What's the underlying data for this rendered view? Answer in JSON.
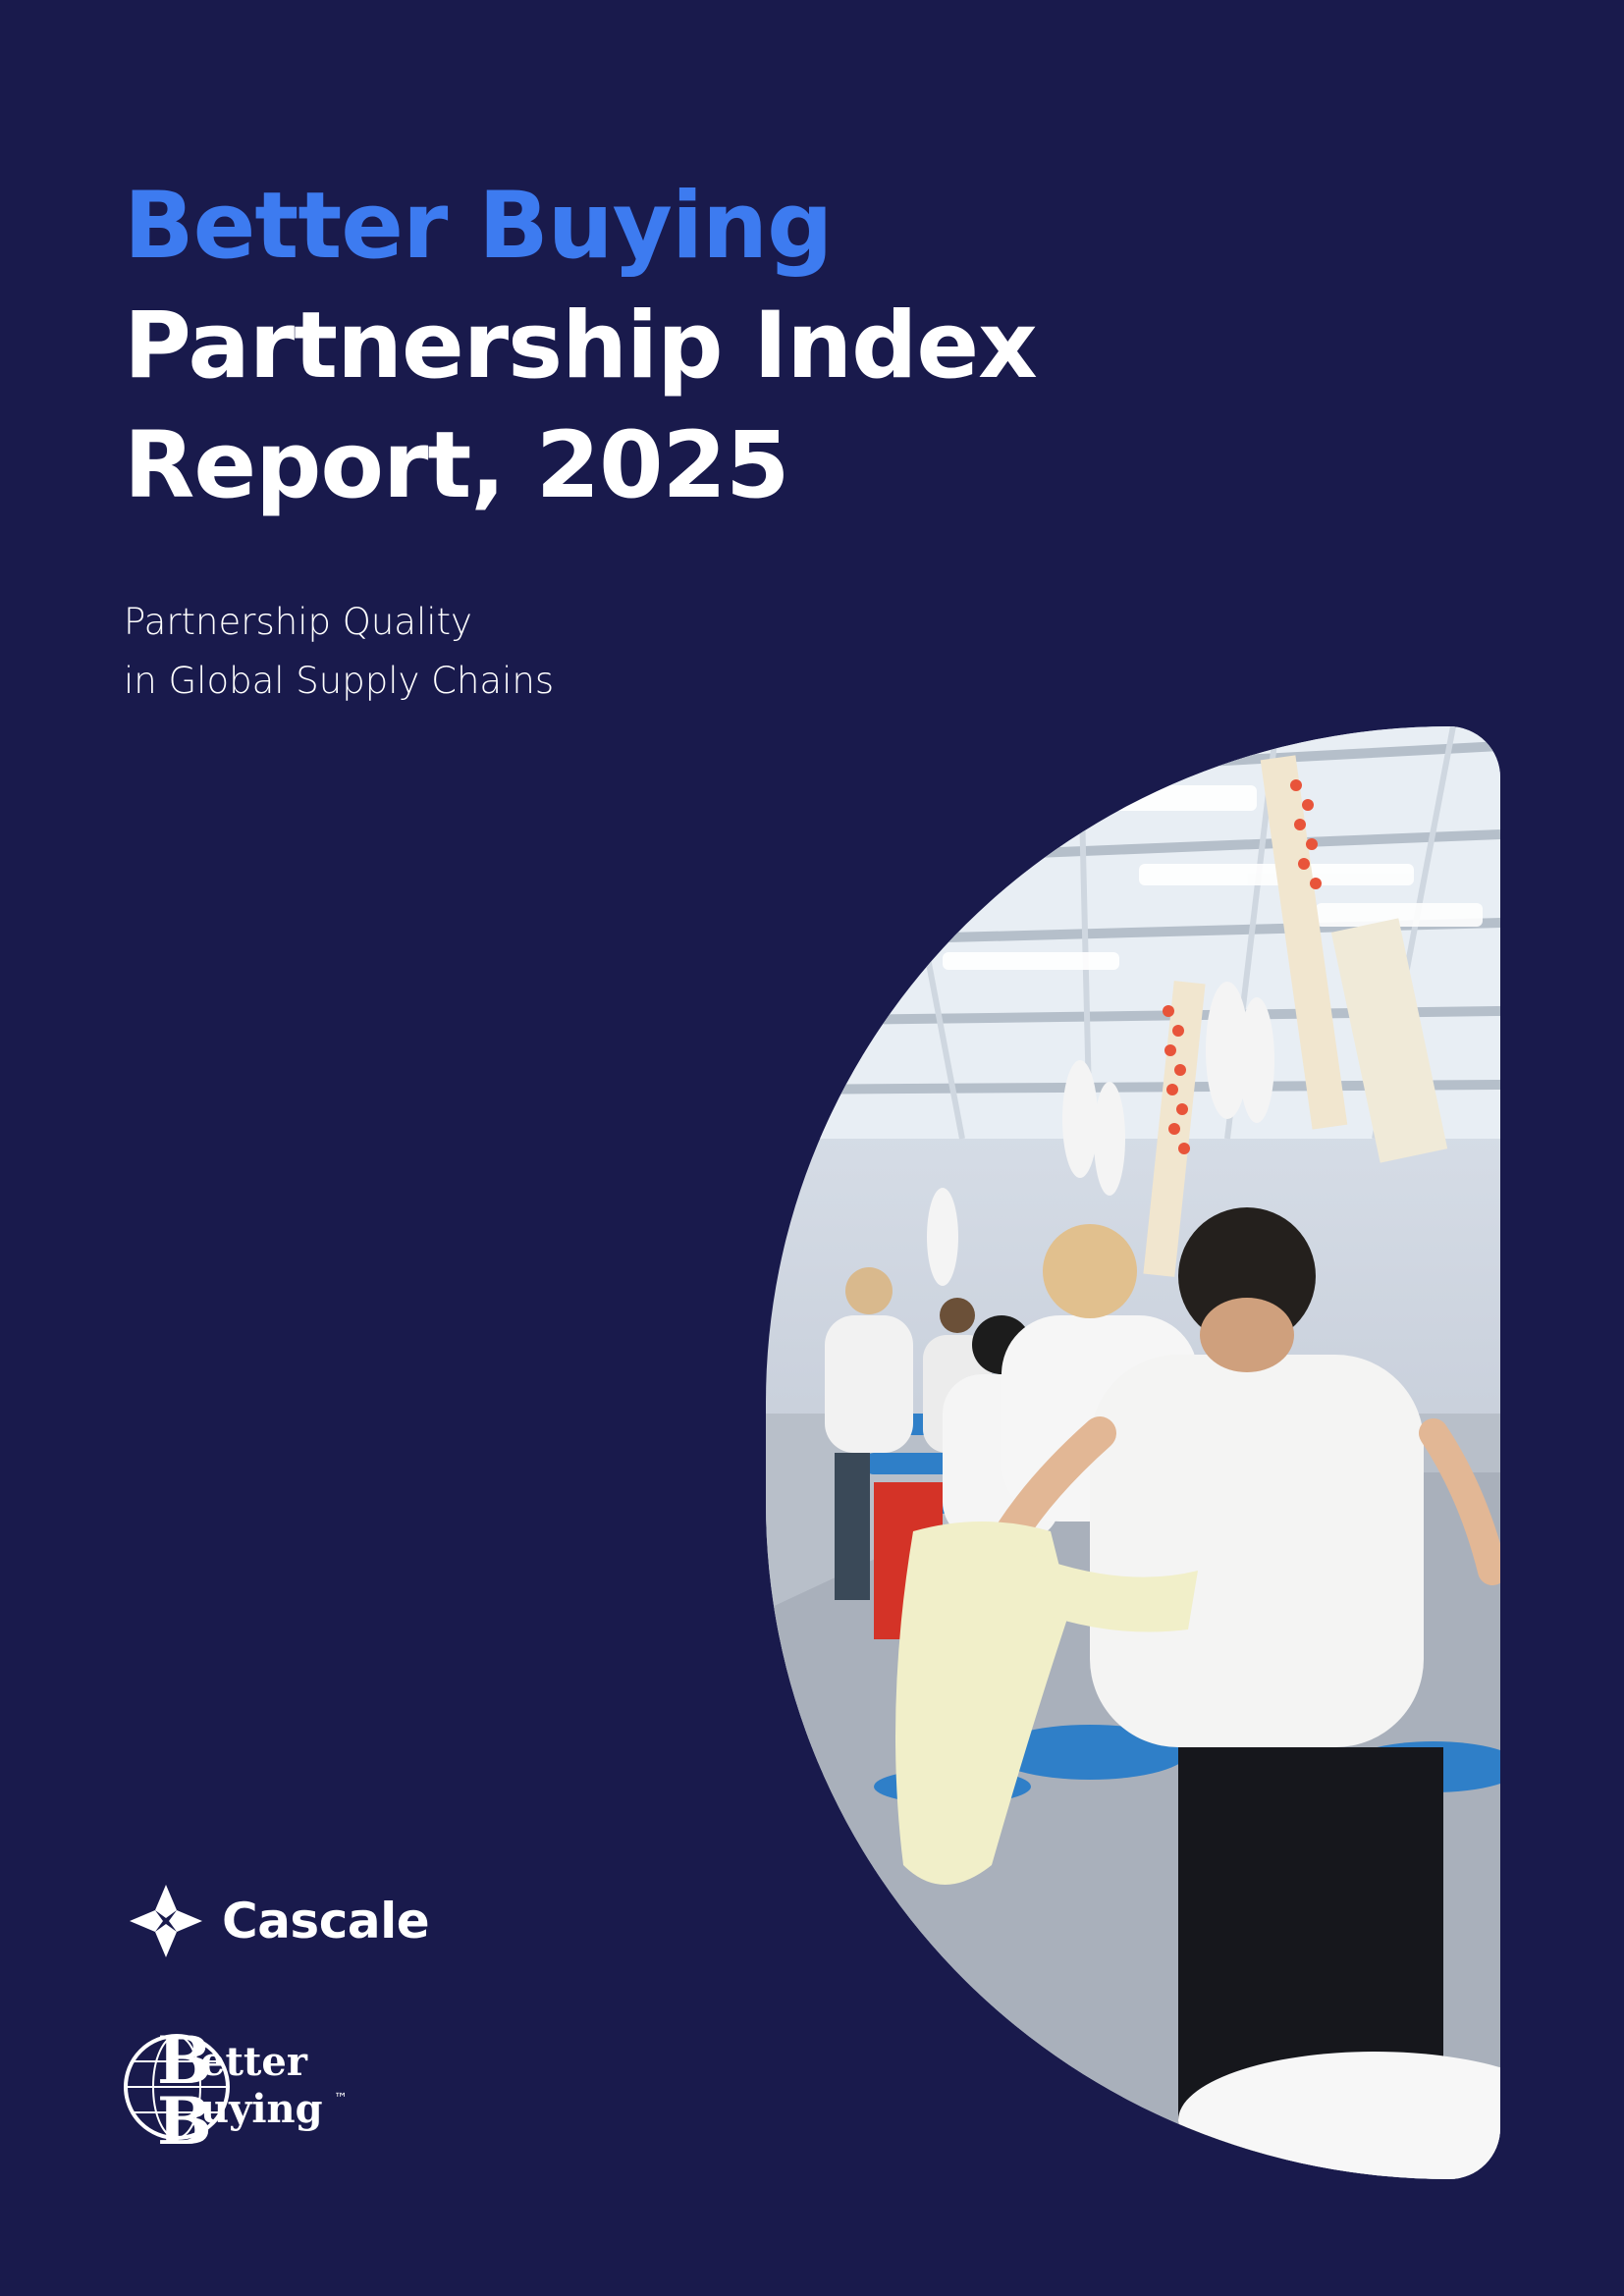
{
  "cover": {
    "title_line1": "Better Buying",
    "title_line2": "Partnership Index",
    "title_line3": "Report, 2025",
    "subtitle_line1": "Partnership Quality",
    "subtitle_line2": "in Global Supply Chains",
    "accent_color": "#3d7bf0",
    "background_color": "#191a4c"
  },
  "logos": {
    "cascale": "Cascale",
    "better_buying": {
      "line1": "etter",
      "line2": "uying",
      "initial": "B",
      "trademark": "™"
    }
  },
  "photo": {
    "description_icon": "garment-factory-photo"
  }
}
